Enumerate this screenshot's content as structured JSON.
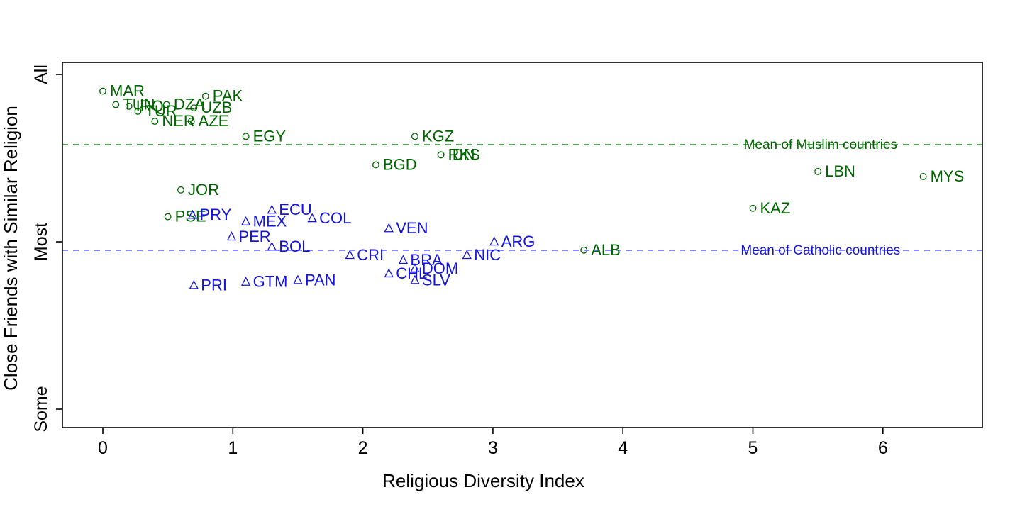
{
  "figure": {
    "background": "#ffffff",
    "axis_color": "#000000",
    "muslim_color": "#006400",
    "catholic_color": "#1414e0"
  },
  "chart_data": {
    "type": "scatter",
    "title": "",
    "xlabel": "Religious Diversity Index",
    "ylabel": "Close Friends with Similar Religion",
    "xlim": [
      -0.31,
      6.77
    ],
    "ylim": [
      0.89,
      3.07
    ],
    "x_ticks": [
      0,
      1,
      2,
      3,
      4,
      5,
      6
    ],
    "y_ticks": [
      {
        "label": "Some",
        "value": 1
      },
      {
        "label": "Most",
        "value": 2
      },
      {
        "label": "All",
        "value": 3
      }
    ],
    "grid": false,
    "legend_position": "none",
    "series": [
      {
        "name": "Muslim countries",
        "marker": "circle",
        "color": "#006400",
        "points": [
          {
            "code": "MAR",
            "x": 0.0,
            "y": 2.9
          },
          {
            "code": "TUN",
            "x": 0.1,
            "y": 2.82
          },
          {
            "code": "IRQ",
            "x": 0.2,
            "y": 2.81
          },
          {
            "code": "TUR",
            "x": 0.27,
            "y": 2.78
          },
          {
            "code": "NER",
            "x": 0.4,
            "y": 2.72
          },
          {
            "code": "DZA",
            "x": 0.49,
            "y": 2.82
          },
          {
            "code": "UZB",
            "x": 0.7,
            "y": 2.8
          },
          {
            "code": "AZE",
            "x": 0.68,
            "y": 2.72
          },
          {
            "code": "PAK",
            "x": 0.79,
            "y": 2.87
          },
          {
            "code": "EGY",
            "x": 1.1,
            "y": 2.63
          },
          {
            "code": "BGD",
            "x": 2.1,
            "y": 2.46
          },
          {
            "code": "KGZ",
            "x": 2.4,
            "y": 2.63
          },
          {
            "code": "IDN",
            "x": 2.6,
            "y": 2.52
          },
          {
            "code": "RKS",
            "x": 2.6,
            "y": 2.52
          },
          {
            "code": "JOR",
            "x": 0.6,
            "y": 2.31
          },
          {
            "code": "PSE",
            "x": 0.5,
            "y": 2.15
          },
          {
            "code": "KAZ",
            "x": 5.0,
            "y": 2.2
          },
          {
            "code": "LBN",
            "x": 5.5,
            "y": 2.42
          },
          {
            "code": "MYS",
            "x": 6.31,
            "y": 2.39
          },
          {
            "code": "ALB",
            "x": 3.7,
            "y": 1.95
          }
        ]
      },
      {
        "name": "Catholic countries",
        "marker": "triangle",
        "color": "#1414e0",
        "points": [
          {
            "code": "PRY",
            "x": 0.69,
            "y": 2.16
          },
          {
            "code": "ECU",
            "x": 1.3,
            "y": 2.19
          },
          {
            "code": "MEX",
            "x": 1.1,
            "y": 2.12
          },
          {
            "code": "COL",
            "x": 1.61,
            "y": 2.14
          },
          {
            "code": "VEN",
            "x": 2.2,
            "y": 2.08
          },
          {
            "code": "PER",
            "x": 0.99,
            "y": 2.03
          },
          {
            "code": "BOL",
            "x": 1.3,
            "y": 1.97
          },
          {
            "code": "ARG",
            "x": 3.01,
            "y": 2.0
          },
          {
            "code": "CRI",
            "x": 1.9,
            "y": 1.92
          },
          {
            "code": "NIC",
            "x": 2.8,
            "y": 1.92
          },
          {
            "code": "BRA",
            "x": 2.31,
            "y": 1.89
          },
          {
            "code": "DOM",
            "x": 2.4,
            "y": 1.84
          },
          {
            "code": "CHL",
            "x": 2.2,
            "y": 1.81
          },
          {
            "code": "SLV",
            "x": 2.4,
            "y": 1.77
          },
          {
            "code": "PRI",
            "x": 0.7,
            "y": 1.74
          },
          {
            "code": "GTM",
            "x": 1.1,
            "y": 1.76
          },
          {
            "code": "PAN",
            "x": 1.5,
            "y": 1.77
          }
        ]
      }
    ],
    "mean_lines": [
      {
        "label": "Mean of Muslim countries",
        "y": 2.58,
        "label_x": 5.52,
        "color": "#006400"
      },
      {
        "label": "Mean of Catholic countries",
        "y": 1.95,
        "label_x": 5.52,
        "color": "#1414e0"
      }
    ]
  }
}
